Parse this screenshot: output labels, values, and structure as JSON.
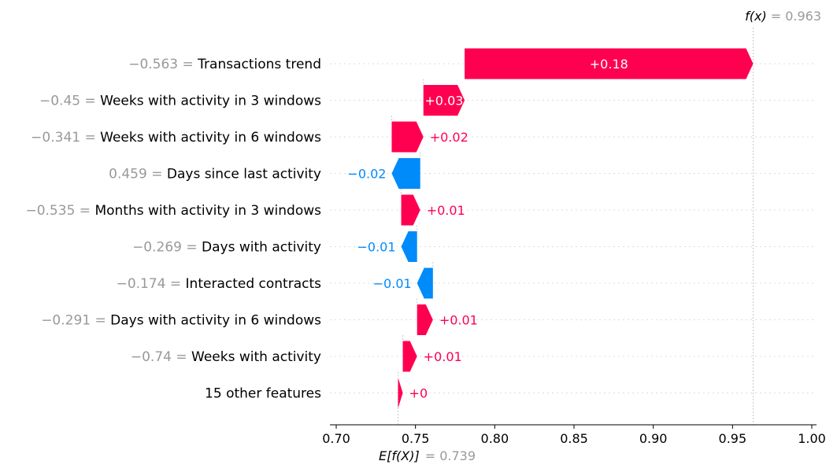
{
  "chart_data": {
    "type": "waterfall",
    "xlim": [
      0.7,
      1.0
    ],
    "xticks": [
      0.7,
      0.75,
      0.8,
      0.85,
      0.9,
      0.95,
      1.0
    ],
    "xtick_labels": [
      "0.70",
      "0.75",
      "0.80",
      "0.85",
      "0.90",
      "0.95",
      "1.00"
    ],
    "base_value": 0.739,
    "base_label": {
      "expr": "E[f(X)]",
      "value_text": "= 0.739"
    },
    "output_value": 0.963,
    "output_label": {
      "expr": "f(x)",
      "value_text": "= 0.963"
    },
    "colors": {
      "positive": "#ff0051",
      "negative": "#008bfb",
      "feature_value": "#999999"
    },
    "features": [
      {
        "value_text": "−0.563 =",
        "name": "Transactions trend",
        "start": 0.781,
        "end": 0.963,
        "label": "+0.18",
        "label_inside": true
      },
      {
        "value_text": "−0.45 =",
        "name": "Weeks with activity in 3 windows",
        "start": 0.755,
        "end": 0.781,
        "label": "+0.03",
        "label_inside": true
      },
      {
        "value_text": "−0.341 =",
        "name": "Weeks with activity in 6 windows",
        "start": 0.735,
        "end": 0.755,
        "label": "+0.02",
        "label_inside": false
      },
      {
        "value_text": "0.459 =",
        "name": "Days since last activity",
        "start": 0.753,
        "end": 0.735,
        "label": "−0.02",
        "label_inside": false
      },
      {
        "value_text": "−0.535 =",
        "name": "Months with activity in 3 windows",
        "start": 0.741,
        "end": 0.753,
        "label": "+0.01",
        "label_inside": false
      },
      {
        "value_text": "−0.269 =",
        "name": "Days with activity",
        "start": 0.751,
        "end": 0.741,
        "label": "−0.01",
        "label_inside": false
      },
      {
        "value_text": "−0.174 =",
        "name": "Interacted contracts",
        "start": 0.761,
        "end": 0.751,
        "label": "−0.01",
        "label_inside": false
      },
      {
        "value_text": "−0.291 =",
        "name": "Days with activity in 6 windows",
        "start": 0.751,
        "end": 0.761,
        "label": "+0.01",
        "label_inside": false
      },
      {
        "value_text": "−0.74 =",
        "name": "Weeks with activity",
        "start": 0.742,
        "end": 0.751,
        "label": "+0.01",
        "label_inside": false
      },
      {
        "value_text": "",
        "name": "15 other features",
        "start": 0.739,
        "end": 0.742,
        "label": "+0",
        "label_inside": false
      }
    ]
  }
}
